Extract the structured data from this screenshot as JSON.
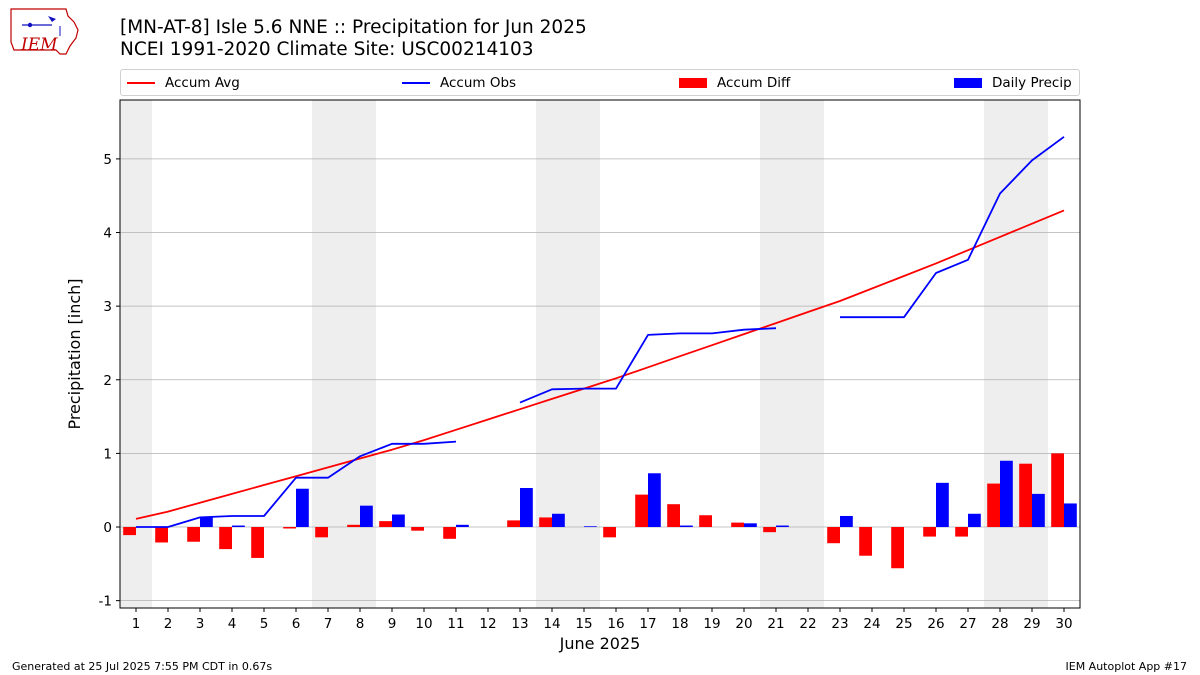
{
  "header": {
    "title_line1": "[MN-AT-8] Isle 5.6 NNE :: Precipitation for Jun 2025",
    "title_line2": "NCEI 1991-2020 Climate Site: USC00214103",
    "logo_text": "IEM"
  },
  "legend": [
    {
      "label": "Accum Avg",
      "kind": "line",
      "color": "#ff0000"
    },
    {
      "label": "Accum Obs",
      "kind": "line",
      "color": "#0000ff"
    },
    {
      "label": "Accum Diff",
      "kind": "bar",
      "color": "#ff0000"
    },
    {
      "label": "Daily Precip",
      "kind": "bar",
      "color": "#0000ff"
    }
  ],
  "footer": {
    "left": "Generated at 25 Jul 2025 7:55 PM CDT in 0.67s",
    "right": "IEM Autoplot App #17"
  },
  "chart_data": {
    "type": "bar",
    "xlabel": "June 2025",
    "ylabel": "Precipitation [inch]",
    "ylim": [
      -1.1,
      5.8
    ],
    "yticks": [
      -1,
      0,
      1,
      2,
      3,
      4,
      5
    ],
    "grid": "horizontal",
    "legend_position": "top",
    "weekend_shading_days": [
      1,
      7,
      8,
      14,
      15,
      21,
      22,
      28,
      29
    ],
    "x": [
      1,
      2,
      3,
      4,
      5,
      6,
      7,
      8,
      9,
      10,
      11,
      12,
      13,
      14,
      15,
      16,
      17,
      18,
      19,
      20,
      21,
      22,
      23,
      24,
      25,
      26,
      27,
      28,
      29,
      30
    ],
    "series": [
      {
        "name": "Accum Avg",
        "kind": "line",
        "color": "#ff0000",
        "values": [
          0.11,
          0.21,
          0.33,
          0.45,
          0.57,
          0.69,
          0.81,
          0.93,
          1.05,
          1.18,
          1.32,
          1.46,
          1.6,
          1.74,
          1.88,
          2.02,
          2.17,
          2.32,
          2.47,
          2.62,
          2.77,
          2.92,
          3.07,
          3.24,
          3.41,
          3.58,
          3.76,
          3.94,
          4.12,
          4.3
        ]
      },
      {
        "name": "Accum Obs",
        "kind": "line",
        "color": "#0000ff",
        "values": [
          0.0,
          0.0,
          0.13,
          0.15,
          0.15,
          0.67,
          0.67,
          0.96,
          1.13,
          1.13,
          1.16,
          null,
          1.69,
          1.87,
          1.88,
          1.88,
          2.61,
          2.63,
          2.63,
          2.68,
          2.7,
          null,
          2.85,
          2.85,
          2.85,
          3.45,
          3.63,
          4.53,
          4.98,
          5.3
        ]
      },
      {
        "name": "Accum Diff",
        "kind": "bar",
        "color": "#ff0000",
        "values": [
          -0.11,
          -0.21,
          -0.2,
          -0.3,
          -0.42,
          -0.02,
          -0.14,
          0.03,
          0.08,
          -0.05,
          -0.16,
          null,
          0.09,
          0.13,
          0.0,
          -0.14,
          0.44,
          0.31,
          0.16,
          0.06,
          -0.07,
          null,
          -0.22,
          -0.39,
          -0.56,
          -0.13,
          -0.13,
          0.59,
          0.86,
          1.0
        ]
      },
      {
        "name": "Daily Precip",
        "kind": "bar",
        "color": "#0000ff",
        "values": [
          0.0,
          0.0,
          0.13,
          0.02,
          0.0,
          0.52,
          0.0,
          0.29,
          0.17,
          0.0,
          0.03,
          null,
          0.53,
          0.18,
          0.01,
          0.0,
          0.73,
          0.02,
          0.0,
          0.05,
          0.02,
          null,
          0.15,
          0.0,
          0.0,
          0.6,
          0.18,
          0.9,
          0.45,
          0.32
        ]
      }
    ]
  }
}
